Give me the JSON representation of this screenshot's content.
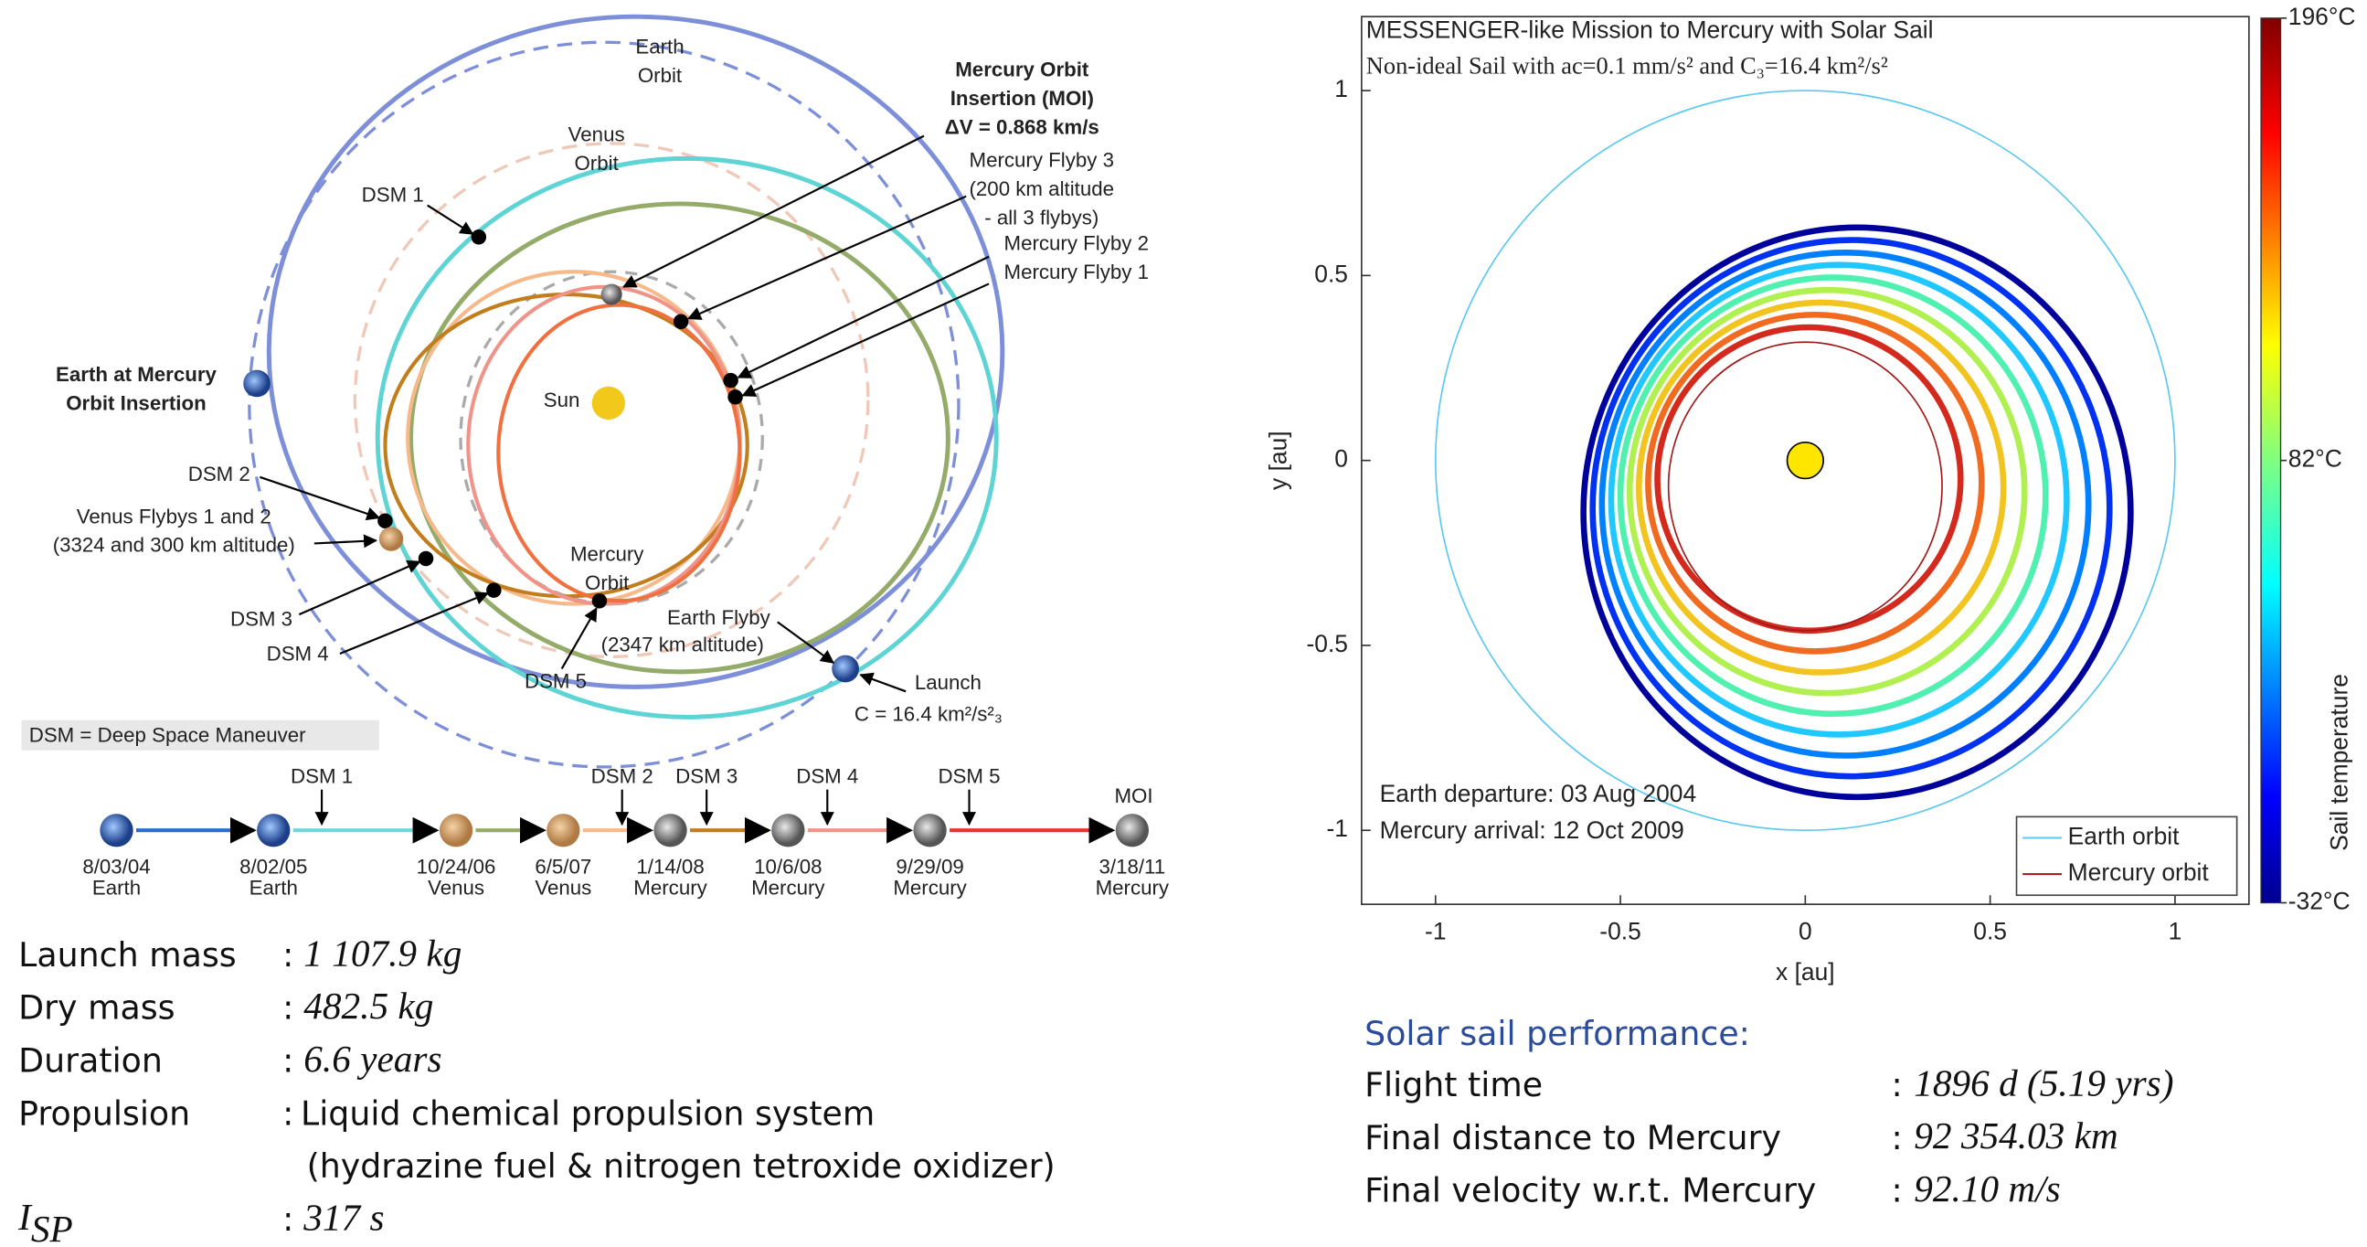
{
  "diagram": {
    "labels": [
      [
        "Earth",
        "Orbit"
      ],
      [
        "Venus",
        "Orbit"
      ],
      [
        "DSM 1"
      ],
      [
        "Mercury Orbit",
        "Insertion (MOI)",
        "ΔV = 0.868 km/s"
      ],
      [
        "Mercury Flyby 3",
        "(200 km altitude",
        "- all 3 flybys)"
      ],
      [
        "Mercury Flyby 2"
      ],
      [
        "Mercury Flyby 1"
      ],
      [
        "Sun"
      ],
      [
        "Earth at Mercury",
        "Orbit Insertion"
      ],
      [
        "DSM 2"
      ],
      [
        "Venus Flybys 1 and 2",
        "(3324 and 300 km altitude)"
      ],
      [
        "DSM 3"
      ],
      [
        "DSM 4"
      ],
      [
        "Mercury",
        "Orbit"
      ],
      [
        "Earth Flyby"
      ],
      [
        "(2347 km altitude)"
      ],
      [
        "DSM 5"
      ],
      [
        "Launch"
      ],
      [
        "C = 16.4 km²/s²₃"
      ]
    ],
    "note": "DSM = Deep Space Maneuver"
  },
  "timeline": {
    "events": [
      {
        "date": "8/03/04",
        "body": "Earth"
      },
      {
        "date": "8/02/05",
        "body": "Earth"
      },
      {
        "date": "10/24/06",
        "body": "Venus"
      },
      {
        "date": "6/5/07",
        "body": "Venus"
      },
      {
        "date": "1/14/08",
        "body": "Mercury"
      },
      {
        "date": "10/6/08",
        "body": "Mercury"
      },
      {
        "date": "9/29/09",
        "body": "Mercury"
      },
      {
        "date": "3/18/11",
        "body": "Mercury"
      }
    ],
    "maneuvers": [
      "DSM 1",
      "DSM 2",
      "DSM 3",
      "DSM 4",
      "DSM 5",
      "MOI"
    ]
  },
  "separator": ":",
  "mission_specs": [
    {
      "label": "Launch mass",
      "value": "1 107.9 kg"
    },
    {
      "label": "Dry mass",
      "value": "482.5 kg"
    },
    {
      "label": "Duration",
      "value": "6.6 years"
    },
    {
      "label": "Propulsion",
      "lines": [
        "Liquid chemical propulsion system",
        "(hydrazine fuel & nitrogen tetroxide oxidizer)"
      ]
    },
    {
      "label": "I",
      "label_sub": "SP",
      "value": "317 s"
    }
  ],
  "chart_data": {
    "type": "orbit",
    "title": "MESSENGER-like Mission to Mercury with Solar Sail",
    "subtitle": "Non-ideal Sail with ac=0.1 mm/s² and C₃=16.4 km²/s²",
    "x_label": "x [au]",
    "y_label": "y [au]",
    "xlim": [
      -1.2,
      1.2
    ],
    "ylim": [
      -1.2,
      1.2
    ],
    "xticks": [
      -1,
      -0.5,
      0,
      0.5,
      1
    ],
    "yticks": [
      -1,
      -0.5,
      0,
      0.5,
      1
    ],
    "series": [
      {
        "name": "Earth orbit",
        "color": "#5bc8f0",
        "center": [
          0,
          0
        ],
        "radius": [
          1,
          1
        ]
      },
      {
        "name": "Mercury orbit",
        "color": "#a01818",
        "center": [
          0,
          -0.07
        ],
        "radius": [
          0.37,
          0.39
        ]
      }
    ],
    "trajectory": [
      {
        "center": [
          0.01,
          -0.05
        ],
        "radius": [
          0.41,
          0.41
        ],
        "color": "#d42a1e"
      },
      {
        "center": [
          0.026,
          -0.061
        ],
        "radius": [
          0.451,
          0.455
        ],
        "color": "#f06a20"
      },
      {
        "center": [
          0.043,
          -0.073
        ],
        "radius": [
          0.493,
          0.5
        ],
        "color": "#f2c420"
      },
      {
        "center": [
          0.059,
          -0.084
        ],
        "radius": [
          0.534,
          0.545
        ],
        "color": "#b0f050"
      },
      {
        "center": [
          0.075,
          -0.095
        ],
        "radius": [
          0.575,
          0.59
        ],
        "color": "#50f0b0"
      },
      {
        "center": [
          0.091,
          -0.106
        ],
        "radius": [
          0.616,
          0.635
        ],
        "color": "#20c8ff"
      },
      {
        "center": [
          0.108,
          -0.118
        ],
        "radius": [
          0.658,
          0.68
        ],
        "color": "#0080ff"
      },
      {
        "center": [
          0.124,
          -0.129
        ],
        "radius": [
          0.699,
          0.725
        ],
        "color": "#0030f0"
      },
      {
        "center": [
          0.14,
          -0.14
        ],
        "radius": [
          0.74,
          0.77
        ],
        "color": "#00009a"
      }
    ],
    "sun": {
      "x": 0,
      "y": 0
    },
    "legend": "lower right",
    "annotations": [
      "Earth departure: 03 Aug 2004",
      "Mercury arrival: 12 Oct 2009"
    ],
    "colorbar": {
      "label": "Sail temperature",
      "lim": [
        -32,
        196
      ],
      "ticks": [
        {
          "value": 196,
          "label": "196°C"
        },
        {
          "value": 82,
          "label": "82°C"
        },
        {
          "value": -32,
          "label": "-32°C"
        }
      ]
    }
  },
  "performance": {
    "heading": "Solar sail performance:",
    "rows": [
      {
        "label": "Flight time",
        "value": "1896 d (5.19 yrs)"
      },
      {
        "label": "Final distance to Mercury",
        "value": "92 354.03 km"
      },
      {
        "label": "Final velocity w.r.t. Mercury",
        "value": "92.10 m/s"
      }
    ]
  }
}
